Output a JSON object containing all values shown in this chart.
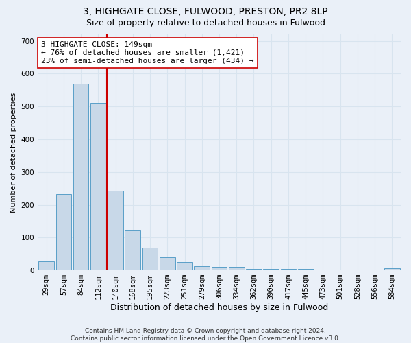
{
  "title1": "3, HIGHGATE CLOSE, FULWOOD, PRESTON, PR2 8LP",
  "title2": "Size of property relative to detached houses in Fulwood",
  "xlabel": "Distribution of detached houses by size in Fulwood",
  "ylabel": "Number of detached properties",
  "categories": [
    "29sqm",
    "57sqm",
    "84sqm",
    "112sqm",
    "140sqm",
    "168sqm",
    "195sqm",
    "223sqm",
    "251sqm",
    "279sqm",
    "306sqm",
    "334sqm",
    "362sqm",
    "390sqm",
    "417sqm",
    "445sqm",
    "473sqm",
    "501sqm",
    "528sqm",
    "556sqm",
    "584sqm"
  ],
  "values": [
    27,
    232,
    570,
    510,
    242,
    122,
    70,
    40,
    25,
    13,
    10,
    10,
    5,
    5,
    5,
    5,
    0,
    0,
    0,
    0,
    7
  ],
  "bar_color": "#c8d8e8",
  "bar_edge_color": "#5a9fc8",
  "grid_color": "#d8e4ef",
  "bg_color": "#eaf0f8",
  "vline_color": "#cc0000",
  "annotation_text": "3 HIGHGATE CLOSE: 149sqm\n← 76% of detached houses are smaller (1,421)\n23% of semi-detached houses are larger (434) →",
  "annotation_box_color": "#ffffff",
  "annotation_box_edge": "#cc0000",
  "footnote": "Contains HM Land Registry data © Crown copyright and database right 2024.\nContains public sector information licensed under the Open Government Licence v3.0.",
  "ylim": [
    0,
    720
  ],
  "yticks": [
    0,
    100,
    200,
    300,
    400,
    500,
    600,
    700
  ],
  "title1_fontsize": 10,
  "title2_fontsize": 9,
  "xlabel_fontsize": 9,
  "ylabel_fontsize": 8,
  "tick_fontsize": 7.5,
  "annotation_fontsize": 8,
  "footnote_fontsize": 6.5
}
